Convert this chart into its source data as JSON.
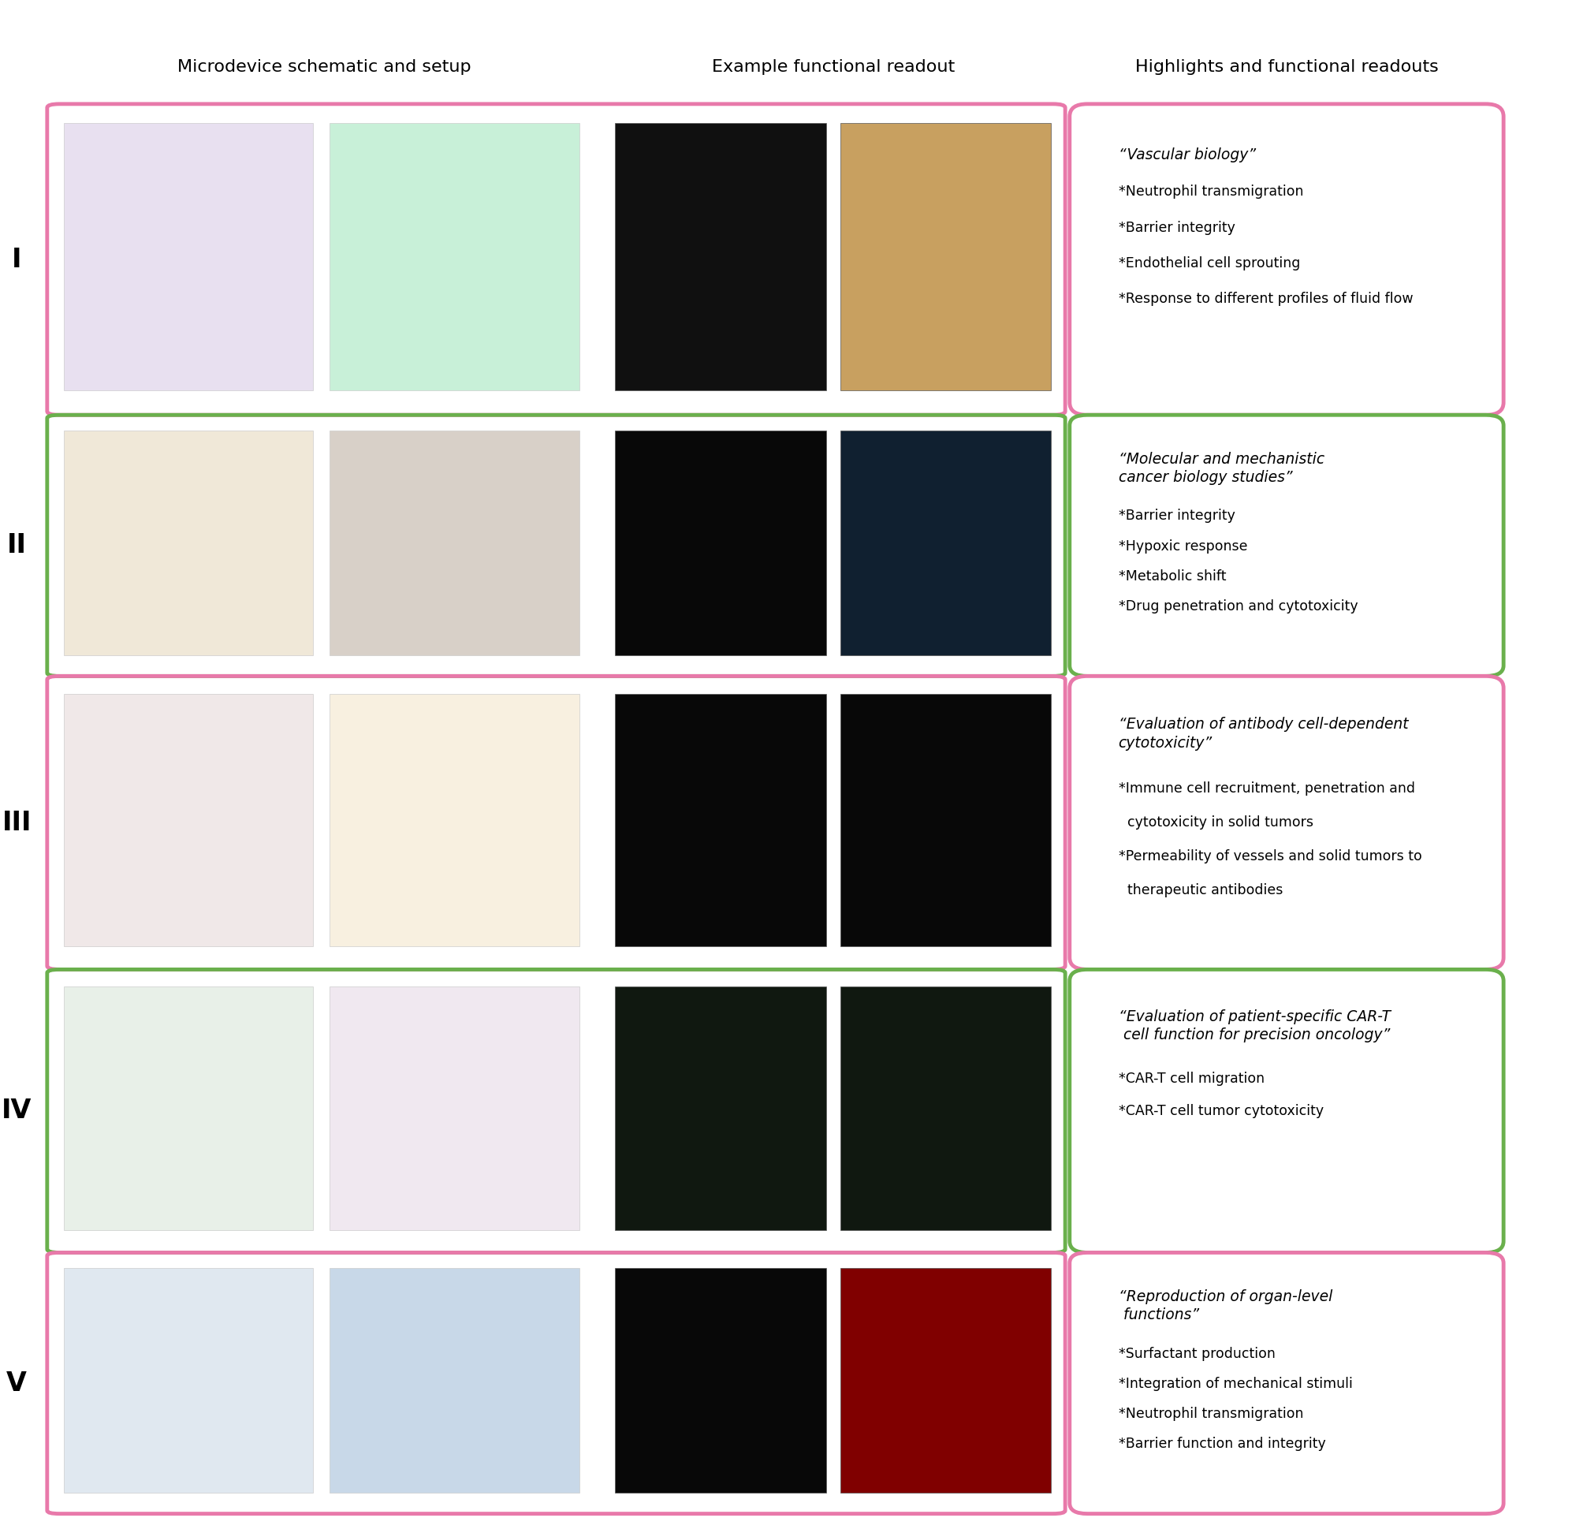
{
  "col_headers": [
    "Microdevice schematic and setup",
    "Example functional readout",
    "Highlights and functional readouts"
  ],
  "rows": [
    {
      "label": "I",
      "border_color": "#e879aa",
      "highlight_title": "“Vascular biology”",
      "highlights": [
        "*Neutrophil transmigration",
        "*Barrier integrity",
        "*Endothelial cell sprouting",
        "*Response to different profiles of fluid flow"
      ],
      "col0_bg": "#f5f5f5",
      "col1_bg": "#f0f0f0"
    },
    {
      "label": "II",
      "border_color": "#6ab04c",
      "highlight_title": "“Molecular and mechanistic\ncancer biology studies”",
      "highlights": [
        "*Barrier integrity",
        "*Hypoxic response",
        "*Metabolic shift",
        "*Drug penetration and cytotoxicity"
      ],
      "col0_bg": "#f8f8f8",
      "col1_bg": "#f0f0f0"
    },
    {
      "label": "III",
      "border_color": "#e879aa",
      "highlight_title": "“Evaluation of antibody cell-dependent\ncytotoxicity”",
      "highlights": [
        "*Immune cell recruitment, penetration and",
        "  cytotoxicity in solid tumors",
        "*Permeability of vessels and solid tumors to",
        "  therapeutic antibodies"
      ],
      "col0_bg": "#f5f5f5",
      "col1_bg": "#f0f0f0"
    },
    {
      "label": "IV",
      "border_color": "#6ab04c",
      "highlight_title": "“Evaluation of patient-specific CAR-T\n cell function for precision oncology”",
      "highlights": [
        "*CAR-T cell migration",
        "*CAR-T cell tumor cytotoxicity"
      ],
      "col0_bg": "#f8f8f8",
      "col1_bg": "#f0f0f0"
    },
    {
      "label": "V",
      "border_color": "#e879aa",
      "highlight_title": "“Reproduction of organ-level\n functions”",
      "highlights": [
        "*Surfactant production",
        "*Integration of mechanical stimuli",
        "*Neutrophil transmigration",
        "*Barrier function and integrity"
      ],
      "col0_bg": "#f5f5f5",
      "col1_bg": "#f0f0f0"
    }
  ],
  "bg_color": "#ffffff",
  "mid_col_bg": "#f0f0f0",
  "header_sep_color": "#e0e0e0",
  "fig_width": 19.94,
  "fig_height": 19.39,
  "row_image_colors": [
    {
      "col0": [
        "#e8e0f0",
        "#c8f0d8"
      ],
      "col1": [
        "#101010",
        "#c8a060"
      ]
    },
    {
      "col0": [
        "#f0e8d8",
        "#d8d0c8"
      ],
      "col1": [
        "#080808",
        "#102030"
      ]
    },
    {
      "col0": [
        "#f0e8e8",
        "#f8f0e0"
      ],
      "col1": [
        "#080808",
        "#080808"
      ]
    },
    {
      "col0": [
        "#e8f0e8",
        "#f0e8f0"
      ],
      "col1": [
        "#101810",
        "#101810"
      ]
    },
    {
      "col0": [
        "#e0e8f0",
        "#c8d8e8"
      ],
      "col1": [
        "#080808",
        "#800000"
      ]
    }
  ]
}
